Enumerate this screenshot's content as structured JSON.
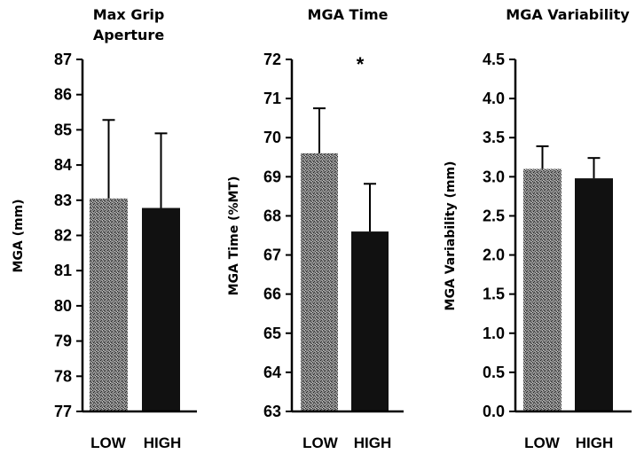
{
  "chart_data": [
    {
      "type": "bar",
      "title": [
        "Max Grip",
        "Aperture"
      ],
      "xlabel": "",
      "ylabel": "MGA (mm)",
      "categories": [
        "LOW",
        "HIGH"
      ],
      "values": [
        83.05,
        82.78
      ],
      "error_upper": [
        85.28,
        84.9
      ],
      "ylim": [
        77,
        87
      ],
      "yticks": [
        77,
        78,
        79,
        80,
        81,
        82,
        83,
        84,
        85,
        86,
        87
      ],
      "ytick_labels": [
        "77",
        "78",
        "79",
        "80",
        "81",
        "82",
        "83",
        "84",
        "85",
        "86",
        "87"
      ],
      "annotation": "",
      "bar_fills": [
        "stipple",
        "solid"
      ],
      "grid": false
    },
    {
      "type": "bar",
      "title": [
        "MGA Time"
      ],
      "xlabel": "",
      "ylabel": "MGA Time (%MT)",
      "categories": [
        "LOW",
        "HIGH"
      ],
      "values": [
        69.6,
        67.6
      ],
      "error_upper": [
        70.75,
        68.82
      ],
      "ylim": [
        63,
        72
      ],
      "yticks": [
        63,
        64,
        65,
        66,
        67,
        68,
        69,
        70,
        71,
        72
      ],
      "ytick_labels": [
        "63",
        "64",
        "65",
        "66",
        "67",
        "68",
        "69",
        "70",
        "71",
        "72"
      ],
      "annotation": "*",
      "bar_fills": [
        "stipple",
        "solid"
      ],
      "grid": false
    },
    {
      "type": "bar",
      "title": [
        "MGA Variability"
      ],
      "xlabel": "",
      "ylabel": "MGA Variability (mm)",
      "categories": [
        "LOW",
        "HIGH"
      ],
      "values": [
        3.1,
        2.98
      ],
      "error_upper": [
        3.39,
        3.24
      ],
      "ylim": [
        0,
        4.5
      ],
      "yticks": [
        0,
        0.5,
        1,
        1.5,
        2,
        2.5,
        3,
        3.5,
        4,
        4.5
      ],
      "ytick_labels": [
        "0.0",
        "0.5",
        "1.0",
        "1.5",
        "2.0",
        "2.5",
        "3.0",
        "3.5",
        "4.0",
        "4.5"
      ],
      "annotation": "",
      "bar_fills": [
        "stipple",
        "solid"
      ],
      "grid": false
    }
  ],
  "colors": {
    "solid_bar": "#111111",
    "stipple_bar": "#3a3a3a",
    "axis": "#000000"
  }
}
